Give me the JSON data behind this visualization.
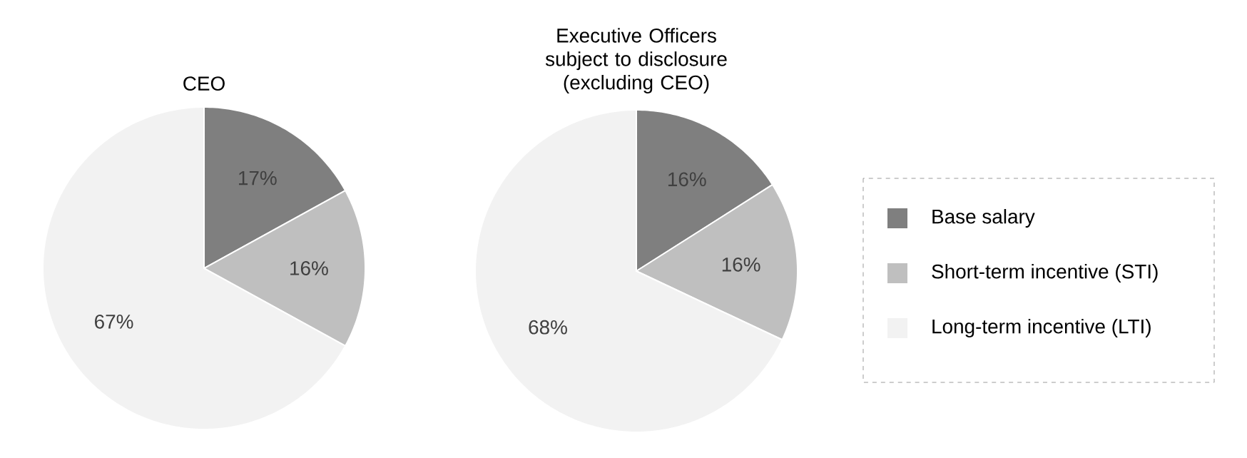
{
  "chart_data": [
    {
      "type": "pie",
      "title": "CEO",
      "values": [
        17,
        16,
        67
      ],
      "value_labels": [
        "17%",
        "16%",
        "67%"
      ],
      "colors": [
        "#7f7f7f",
        "#bfbfbf",
        "#f2f2f2"
      ]
    },
    {
      "type": "pie",
      "title": "Executive Officers subject to disclosure (excluding CEO)",
      "categories": [
        "Base salary",
        "Short-term incentive (STI)",
        "Long-term incentive (LTI)"
      ],
      "values": [
        16,
        16,
        68
      ],
      "value_labels": [
        "16%",
        "16%",
        "68%"
      ],
      "colors": [
        "#7f7f7f",
        "#bfbfbf",
        "#f2f2f2"
      ],
      "legend": "right"
    }
  ]
}
